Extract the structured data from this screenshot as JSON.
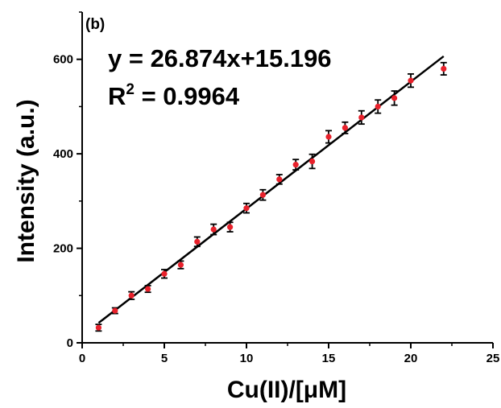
{
  "chart_data": {
    "type": "scatter",
    "panel_label": "(b)",
    "xlabel": "Cu(II)/[μM]",
    "ylabel": "Intensity (a.u.)",
    "xlim": [
      0,
      25
    ],
    "ylim": [
      0,
      700
    ],
    "x_ticks": [
      0,
      5,
      10,
      15,
      20,
      25
    ],
    "y_ticks": [
      0,
      200,
      400,
      600
    ],
    "x_tick_labels": [
      "0",
      "5",
      "10",
      "15",
      "20",
      "25"
    ],
    "y_tick_labels": [
      "0",
      "200",
      "400",
      "600"
    ],
    "grid": false,
    "annotations": {
      "equation": "y = 26.874x+15.196",
      "r2_prefix": "R",
      "r2_sup": "2",
      "r2_value": " = 0.9964"
    },
    "fit_line": {
      "slope": 26.874,
      "intercept": 15.196,
      "x_range": [
        1,
        22
      ]
    },
    "series": [
      {
        "marker_color": "#e8212b",
        "points": [
          {
            "x": 1,
            "y": 32,
            "err": 7
          },
          {
            "x": 2,
            "y": 68,
            "err": 6
          },
          {
            "x": 3,
            "y": 100,
            "err": 8
          },
          {
            "x": 4,
            "y": 114,
            "err": 7
          },
          {
            "x": 5,
            "y": 146,
            "err": 9
          },
          {
            "x": 6,
            "y": 165,
            "err": 8
          },
          {
            "x": 7,
            "y": 214,
            "err": 10
          },
          {
            "x": 8,
            "y": 240,
            "err": 11
          },
          {
            "x": 9,
            "y": 245,
            "err": 10
          },
          {
            "x": 10,
            "y": 285,
            "err": 10
          },
          {
            "x": 11,
            "y": 313,
            "err": 11
          },
          {
            "x": 12,
            "y": 346,
            "err": 10
          },
          {
            "x": 13,
            "y": 377,
            "err": 11
          },
          {
            "x": 14,
            "y": 384,
            "err": 15
          },
          {
            "x": 15,
            "y": 436,
            "err": 13
          },
          {
            "x": 16,
            "y": 455,
            "err": 12
          },
          {
            "x": 17,
            "y": 477,
            "err": 14
          },
          {
            "x": 18,
            "y": 500,
            "err": 14
          },
          {
            "x": 19,
            "y": 518,
            "err": 15
          },
          {
            "x": 20,
            "y": 555,
            "err": 14
          },
          {
            "x": 22,
            "y": 580,
            "err": 13
          }
        ]
      }
    ]
  }
}
